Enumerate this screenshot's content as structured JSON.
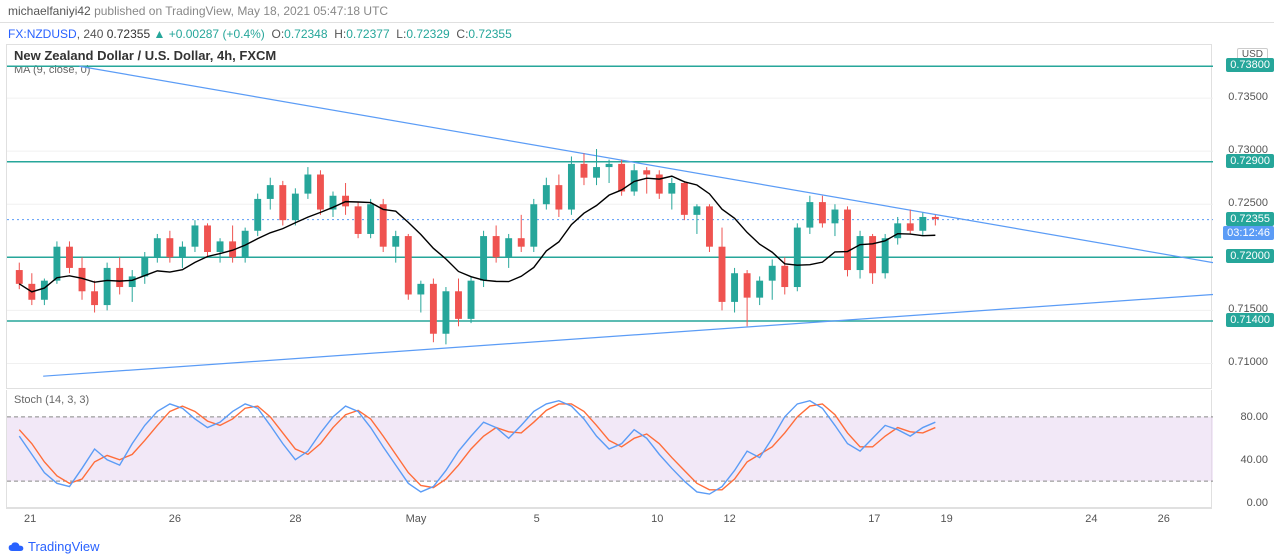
{
  "header": {
    "author": "michaelfaniyi42",
    "published_text": "published on",
    "site": "TradingView",
    "datetime": "May 18, 2021 05:47:18 UTC"
  },
  "info": {
    "prefix": "FX",
    "symbol": "NZDUSD",
    "interval": "240",
    "last": "0.72355",
    "change": "+0.00287",
    "change_pct": "(+0.4%)",
    "o_label": "O",
    "o": "0.72348",
    "h_label": "H",
    "h": "0.72377",
    "l_label": "L",
    "l": "0.72329",
    "c_label": "C",
    "c": "0.72355"
  },
  "chart": {
    "title": "New Zealand Dollar / U.S. Dollar, 4h, FXCM",
    "ma_label": "MA (9, close, 0)",
    "y_axis": {
      "min": 0.7075,
      "max": 0.74,
      "ticks": [
        0.735,
        0.73,
        0.725,
        0.72,
        0.715,
        0.71
      ],
      "tick_labels": [
        "0.73500",
        "0.73000",
        "0.72500",
        "0.72000",
        "0.71500",
        "0.71000"
      ],
      "currency_badge": "USD",
      "gridline_color": "#f0f0f0"
    },
    "price_labels": [
      {
        "value": 0.738,
        "text": "0.73800",
        "bg": "#26a69a"
      },
      {
        "value": 0.729,
        "text": "0.72900",
        "bg": "#26a69a"
      },
      {
        "value": 0.72355,
        "text": "0.72355",
        "bg": "#26a69a"
      },
      {
        "value": 0.72,
        "text": "0.72000",
        "bg": "#26a69a"
      },
      {
        "value": 0.714,
        "text": "0.71400",
        "bg": "#26a69a"
      }
    ],
    "countdown": {
      "value_y": 0.7222,
      "text": "03:12:46",
      "bg": "#5b9cf6"
    },
    "horizontal_lines": [
      {
        "y": 0.738,
        "color": "#26a69a",
        "width": 1.5
      },
      {
        "y": 0.729,
        "color": "#26a69a",
        "width": 1.5
      },
      {
        "y": 0.72,
        "color": "#26a69a",
        "width": 1.5
      },
      {
        "y": 0.714,
        "color": "#26a69a",
        "width": 1.5
      }
    ],
    "dotted_price_line": {
      "y": 0.72355,
      "color": "#5b9cf6"
    },
    "trend_lines": [
      {
        "x1": 0.03,
        "y1": 0.7088,
        "x2": 1.0,
        "y2": 0.7165,
        "color": "#5b9cf6",
        "width": 1.2
      },
      {
        "x1": 0.06,
        "y1": 0.738,
        "x2": 1.0,
        "y2": 0.7195,
        "color": "#5b9cf6",
        "width": 1.2
      }
    ],
    "colors": {
      "up_body": "#26a69a",
      "up_wick": "#26a69a",
      "down_body": "#ef5350",
      "down_wick": "#ef5350",
      "ma": "#000000"
    },
    "candles": [
      {
        "o": 0.7188,
        "h": 0.7195,
        "l": 0.717,
        "c": 0.7175
      },
      {
        "o": 0.7175,
        "h": 0.7185,
        "l": 0.7155,
        "c": 0.716
      },
      {
        "o": 0.716,
        "h": 0.718,
        "l": 0.7155,
        "c": 0.7178
      },
      {
        "o": 0.7178,
        "h": 0.7215,
        "l": 0.7175,
        "c": 0.721
      },
      {
        "o": 0.721,
        "h": 0.7215,
        "l": 0.7185,
        "c": 0.719
      },
      {
        "o": 0.719,
        "h": 0.72,
        "l": 0.716,
        "c": 0.7168
      },
      {
        "o": 0.7168,
        "h": 0.7178,
        "l": 0.7148,
        "c": 0.7155
      },
      {
        "o": 0.7155,
        "h": 0.7195,
        "l": 0.715,
        "c": 0.719
      },
      {
        "o": 0.719,
        "h": 0.72,
        "l": 0.7165,
        "c": 0.7172
      },
      {
        "o": 0.7172,
        "h": 0.7188,
        "l": 0.7158,
        "c": 0.7182
      },
      {
        "o": 0.7182,
        "h": 0.7205,
        "l": 0.7175,
        "c": 0.72
      },
      {
        "o": 0.72,
        "h": 0.7222,
        "l": 0.7195,
        "c": 0.7218
      },
      {
        "o": 0.7218,
        "h": 0.7225,
        "l": 0.7195,
        "c": 0.72
      },
      {
        "o": 0.72,
        "h": 0.7215,
        "l": 0.719,
        "c": 0.721
      },
      {
        "o": 0.721,
        "h": 0.7235,
        "l": 0.7205,
        "c": 0.723
      },
      {
        "o": 0.723,
        "h": 0.7232,
        "l": 0.72,
        "c": 0.7205
      },
      {
        "o": 0.7205,
        "h": 0.7218,
        "l": 0.7195,
        "c": 0.7215
      },
      {
        "o": 0.7215,
        "h": 0.723,
        "l": 0.7195,
        "c": 0.72
      },
      {
        "o": 0.72,
        "h": 0.7228,
        "l": 0.7195,
        "c": 0.7225
      },
      {
        "o": 0.7225,
        "h": 0.726,
        "l": 0.722,
        "c": 0.7255
      },
      {
        "o": 0.7255,
        "h": 0.7275,
        "l": 0.7245,
        "c": 0.7268
      },
      {
        "o": 0.7268,
        "h": 0.7272,
        "l": 0.723,
        "c": 0.7235
      },
      {
        "o": 0.7235,
        "h": 0.7265,
        "l": 0.723,
        "c": 0.726
      },
      {
        "o": 0.726,
        "h": 0.7285,
        "l": 0.7255,
        "c": 0.7278
      },
      {
        "o": 0.7278,
        "h": 0.7282,
        "l": 0.724,
        "c": 0.7245
      },
      {
        "o": 0.7245,
        "h": 0.7262,
        "l": 0.7238,
        "c": 0.7258
      },
      {
        "o": 0.7258,
        "h": 0.727,
        "l": 0.724,
        "c": 0.7248
      },
      {
        "o": 0.7248,
        "h": 0.7252,
        "l": 0.7218,
        "c": 0.7222
      },
      {
        "o": 0.7222,
        "h": 0.7255,
        "l": 0.7218,
        "c": 0.725
      },
      {
        "o": 0.725,
        "h": 0.7255,
        "l": 0.7205,
        "c": 0.721
      },
      {
        "o": 0.721,
        "h": 0.7225,
        "l": 0.7195,
        "c": 0.722
      },
      {
        "o": 0.722,
        "h": 0.7222,
        "l": 0.716,
        "c": 0.7165
      },
      {
        "o": 0.7165,
        "h": 0.7178,
        "l": 0.7148,
        "c": 0.7175
      },
      {
        "o": 0.7175,
        "h": 0.718,
        "l": 0.712,
        "c": 0.7128
      },
      {
        "o": 0.7128,
        "h": 0.7172,
        "l": 0.7118,
        "c": 0.7168
      },
      {
        "o": 0.7168,
        "h": 0.718,
        "l": 0.7135,
        "c": 0.7142
      },
      {
        "o": 0.7142,
        "h": 0.7182,
        "l": 0.7138,
        "c": 0.7178
      },
      {
        "o": 0.7178,
        "h": 0.7225,
        "l": 0.7172,
        "c": 0.722
      },
      {
        "o": 0.722,
        "h": 0.723,
        "l": 0.7195,
        "c": 0.72
      },
      {
        "o": 0.72,
        "h": 0.7222,
        "l": 0.719,
        "c": 0.7218
      },
      {
        "o": 0.7218,
        "h": 0.724,
        "l": 0.7205,
        "c": 0.721
      },
      {
        "o": 0.721,
        "h": 0.7255,
        "l": 0.7205,
        "c": 0.725
      },
      {
        "o": 0.725,
        "h": 0.7275,
        "l": 0.7245,
        "c": 0.7268
      },
      {
        "o": 0.7268,
        "h": 0.7278,
        "l": 0.7238,
        "c": 0.7245
      },
      {
        "o": 0.7245,
        "h": 0.7295,
        "l": 0.724,
        "c": 0.7288
      },
      {
        "o": 0.7288,
        "h": 0.7298,
        "l": 0.7268,
        "c": 0.7275
      },
      {
        "o": 0.7275,
        "h": 0.7302,
        "l": 0.7268,
        "c": 0.7285
      },
      {
        "o": 0.7285,
        "h": 0.7292,
        "l": 0.727,
        "c": 0.7288
      },
      {
        "o": 0.7288,
        "h": 0.7292,
        "l": 0.7258,
        "c": 0.7262
      },
      {
        "o": 0.7262,
        "h": 0.7288,
        "l": 0.7258,
        "c": 0.7282
      },
      {
        "o": 0.7282,
        "h": 0.7285,
        "l": 0.726,
        "c": 0.7278
      },
      {
        "o": 0.7278,
        "h": 0.7282,
        "l": 0.7255,
        "c": 0.726
      },
      {
        "o": 0.726,
        "h": 0.7275,
        "l": 0.7245,
        "c": 0.727
      },
      {
        "o": 0.727,
        "h": 0.7272,
        "l": 0.7235,
        "c": 0.724
      },
      {
        "o": 0.724,
        "h": 0.725,
        "l": 0.7222,
        "c": 0.7248
      },
      {
        "o": 0.7248,
        "h": 0.725,
        "l": 0.7205,
        "c": 0.721
      },
      {
        "o": 0.721,
        "h": 0.7228,
        "l": 0.715,
        "c": 0.7158
      },
      {
        "o": 0.7158,
        "h": 0.719,
        "l": 0.7148,
        "c": 0.7185
      },
      {
        "o": 0.7185,
        "h": 0.7188,
        "l": 0.7135,
        "c": 0.7162
      },
      {
        "o": 0.7162,
        "h": 0.7182,
        "l": 0.7155,
        "c": 0.7178
      },
      {
        "o": 0.7178,
        "h": 0.7198,
        "l": 0.716,
        "c": 0.7192
      },
      {
        "o": 0.7192,
        "h": 0.72,
        "l": 0.7165,
        "c": 0.7172
      },
      {
        "o": 0.7172,
        "h": 0.7232,
        "l": 0.7168,
        "c": 0.7228
      },
      {
        "o": 0.7228,
        "h": 0.7258,
        "l": 0.7222,
        "c": 0.7252
      },
      {
        "o": 0.7252,
        "h": 0.7258,
        "l": 0.7228,
        "c": 0.7232
      },
      {
        "o": 0.7232,
        "h": 0.725,
        "l": 0.722,
        "c": 0.7245
      },
      {
        "o": 0.7245,
        "h": 0.7248,
        "l": 0.7182,
        "c": 0.7188
      },
      {
        "o": 0.7188,
        "h": 0.7225,
        "l": 0.718,
        "c": 0.722
      },
      {
        "o": 0.722,
        "h": 0.7222,
        "l": 0.7175,
        "c": 0.7185
      },
      {
        "o": 0.7185,
        "h": 0.7222,
        "l": 0.718,
        "c": 0.7218
      },
      {
        "o": 0.7218,
        "h": 0.7238,
        "l": 0.7212,
        "c": 0.7232
      },
      {
        "o": 0.7232,
        "h": 0.7245,
        "l": 0.7222,
        "c": 0.7225
      },
      {
        "o": 0.7225,
        "h": 0.7242,
        "l": 0.722,
        "c": 0.7238
      },
      {
        "o": 0.7238,
        "h": 0.724,
        "l": 0.723,
        "c": 0.7236
      }
    ],
    "x_axis": {
      "labels": [
        "21",
        "26",
        "28",
        "May",
        "5",
        "10",
        "12",
        "17",
        "19",
        "24",
        "26"
      ],
      "positions": [
        0.02,
        0.14,
        0.24,
        0.34,
        0.44,
        0.54,
        0.6,
        0.72,
        0.78,
        0.9,
        0.96
      ]
    }
  },
  "stoch": {
    "label": "Stoch (14, 3, 3)",
    "y_axis": {
      "min": -5,
      "max": 105,
      "ticks": [
        80,
        40,
        0
      ],
      "tick_labels": [
        "80.00",
        "40.00",
        "0.00"
      ]
    },
    "band": {
      "upper": 80,
      "lower": 20,
      "fill": "#e8d5f0",
      "fill_opacity": 0.55,
      "border": "#888"
    },
    "colors": {
      "k": "#5b9cf6",
      "d": "#ff6d3a"
    },
    "k": [
      62,
      45,
      28,
      18,
      15,
      32,
      50,
      40,
      35,
      55,
      72,
      85,
      92,
      88,
      78,
      70,
      75,
      85,
      92,
      88,
      72,
      55,
      40,
      48,
      65,
      80,
      90,
      85,
      70,
      52,
      35,
      18,
      10,
      15,
      30,
      48,
      62,
      75,
      70,
      60,
      72,
      85,
      92,
      95,
      90,
      78,
      62,
      50,
      55,
      68,
      60,
      45,
      32,
      20,
      10,
      8,
      15,
      30,
      48,
      42,
      60,
      80,
      92,
      95,
      88,
      72,
      55,
      48,
      60,
      72,
      68,
      62,
      70,
      75
    ],
    "d": [
      68,
      55,
      38,
      25,
      18,
      22,
      38,
      44,
      40,
      45,
      58,
      72,
      85,
      90,
      85,
      76,
      72,
      78,
      88,
      90,
      80,
      65,
      50,
      45,
      55,
      70,
      82,
      86,
      78,
      62,
      45,
      28,
      16,
      14,
      22,
      35,
      50,
      62,
      70,
      66,
      65,
      75,
      86,
      92,
      92,
      85,
      72,
      58,
      52,
      60,
      64,
      55,
      42,
      30,
      18,
      12,
      12,
      22,
      38,
      45,
      52,
      65,
      80,
      90,
      92,
      82,
      65,
      52,
      52,
      62,
      70,
      66,
      65,
      70
    ]
  },
  "footer": {
    "brand": "TradingView"
  }
}
